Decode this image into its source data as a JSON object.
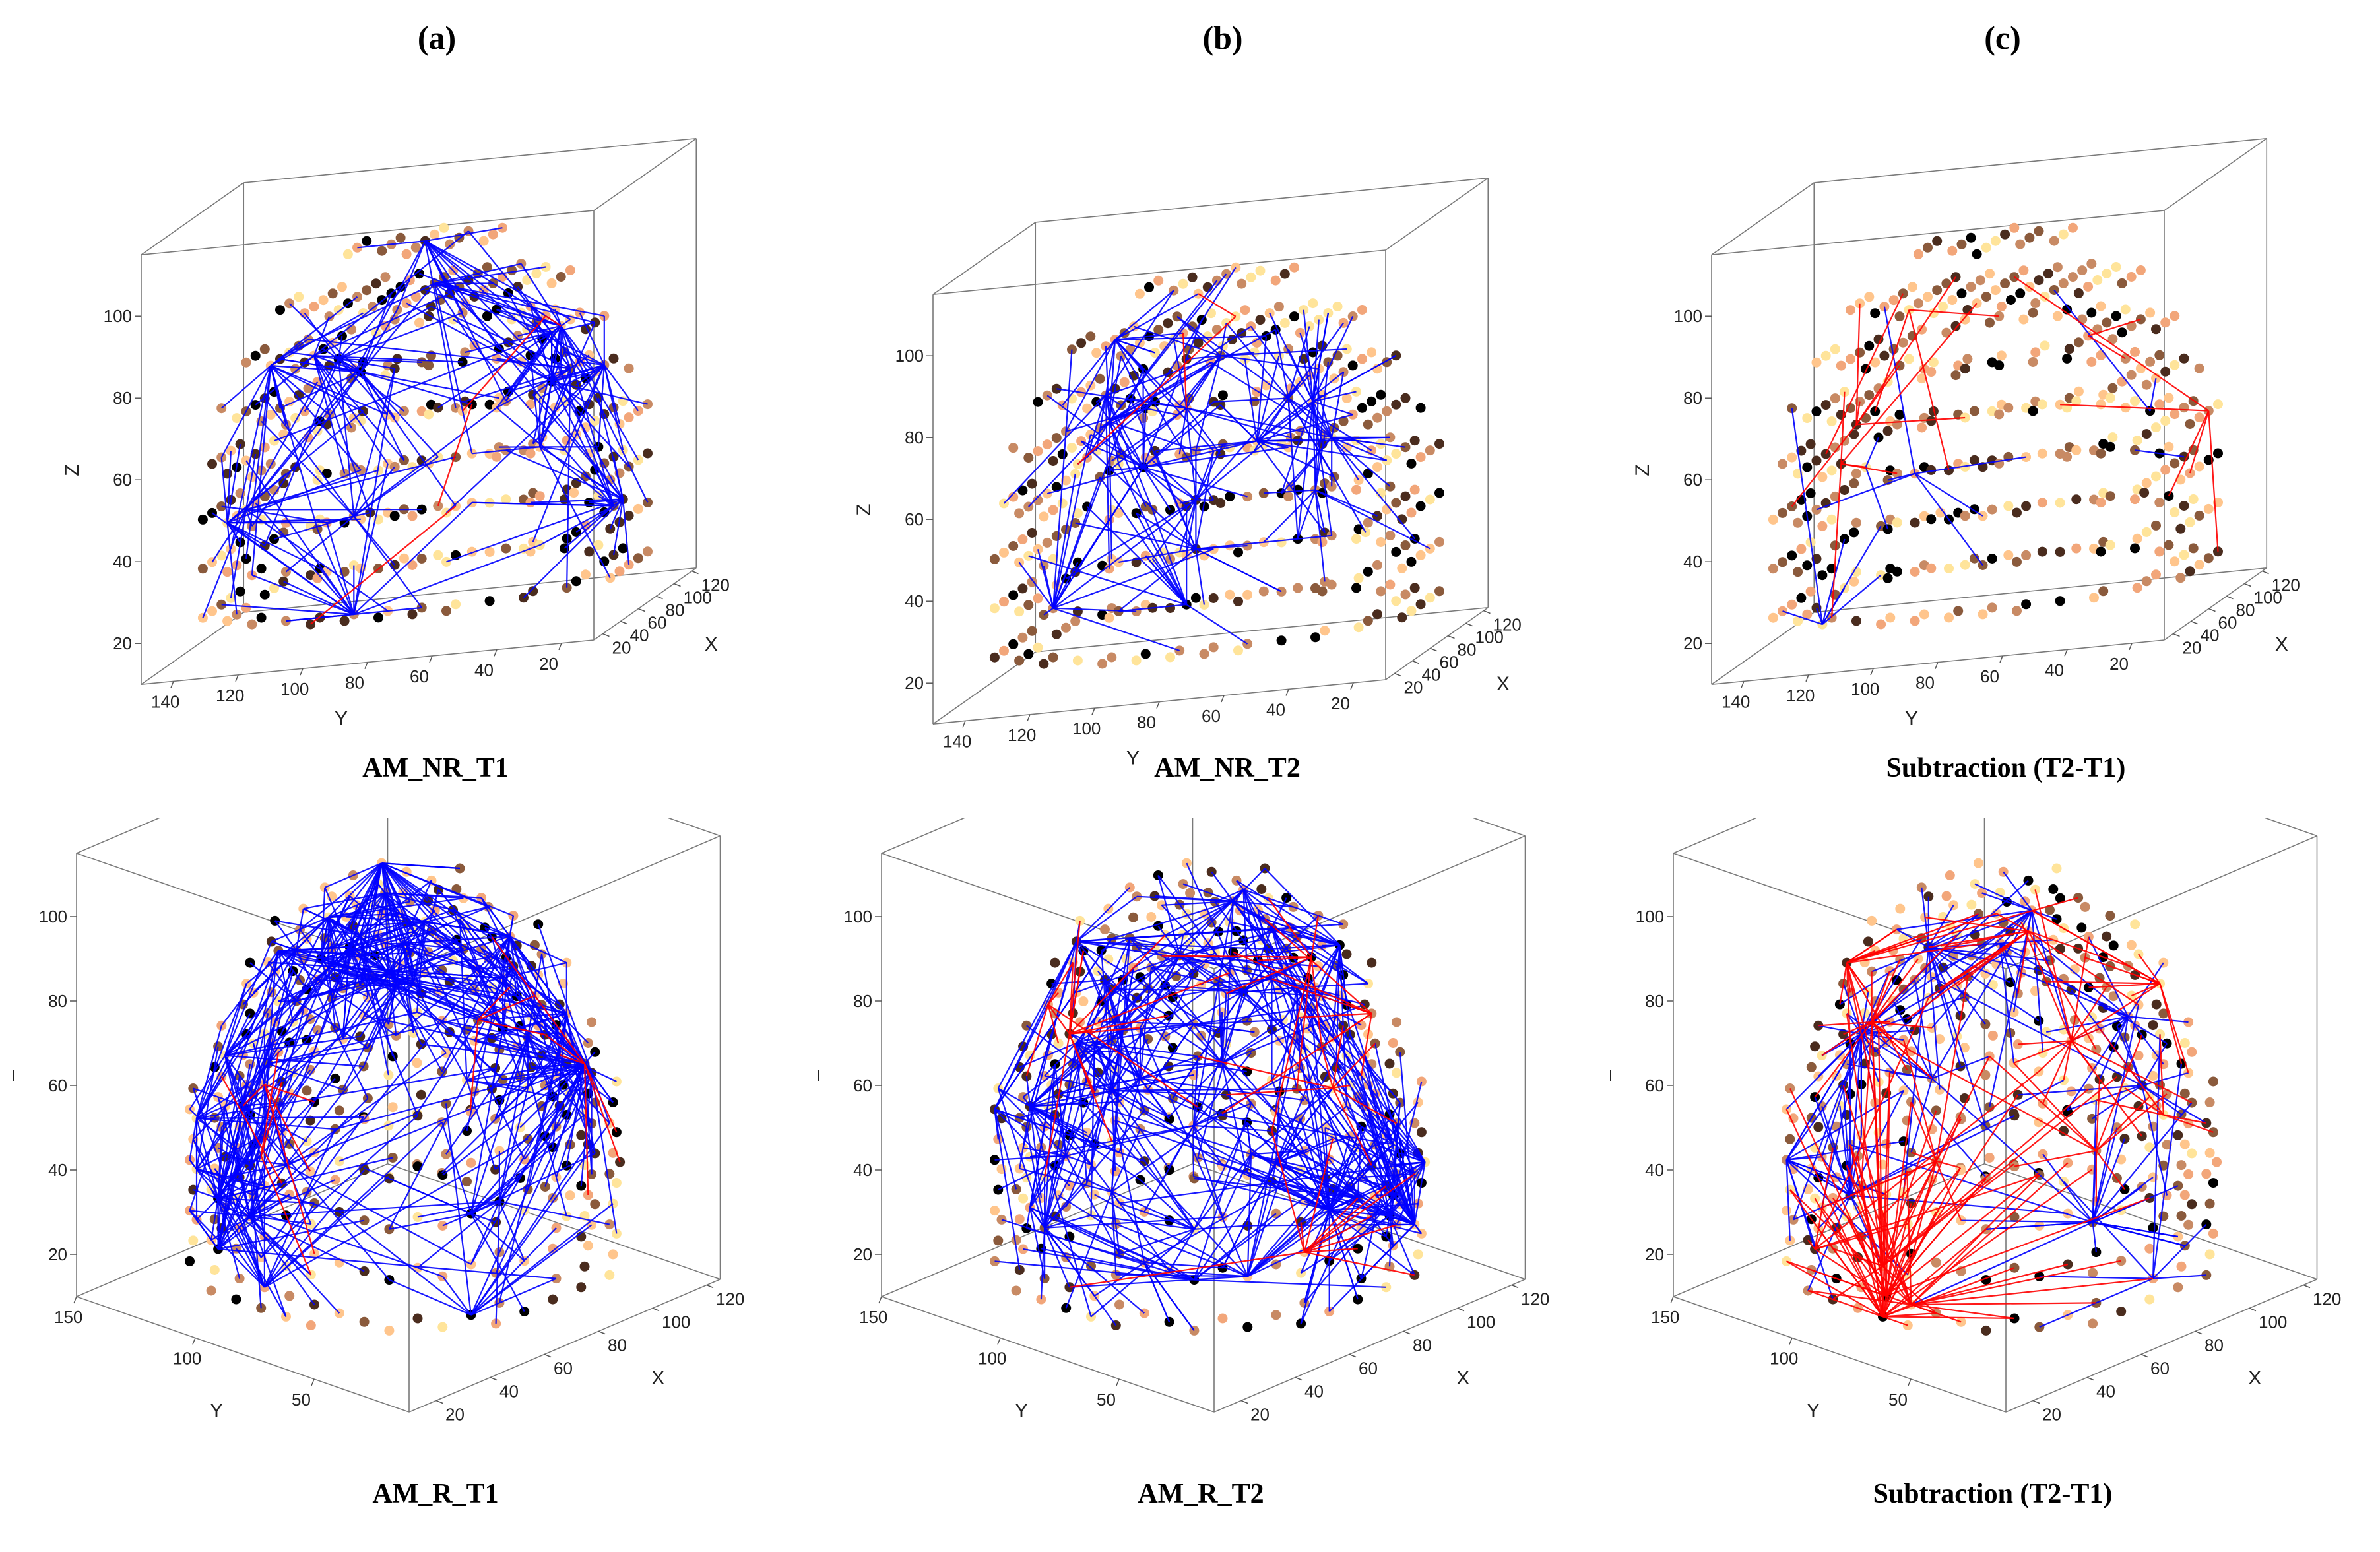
{
  "column_labels": [
    "(a)",
    "(b)",
    "(c)"
  ],
  "chart_data": [
    {
      "type": "scatter",
      "title": "AM_NR_T1",
      "xlabel": "X",
      "ylabel": "Y",
      "zlabel": "Z",
      "xticks": [
        20,
        40,
        60,
        80,
        100,
        120
      ],
      "yticks": [
        140,
        120,
        100,
        80,
        60,
        40,
        20
      ],
      "zticks": [
        20,
        40,
        60,
        80,
        100
      ],
      "xlim": [
        10,
        125
      ],
      "ylim": [
        10,
        150
      ],
      "zlim": [
        10,
        115
      ],
      "view": "A",
      "edge_density": {
        "blue": 260,
        "red": 4
      },
      "edge_colors": {
        "positive": "#0000ff",
        "negative": "#ff0000"
      },
      "node_colormap": [
        "#000000",
        "#4a2c1e",
        "#8a5a3c",
        "#c88a64",
        "#f2a67a",
        "#ffc58c",
        "#ffe49a"
      ]
    },
    {
      "type": "scatter",
      "title": "AM_NR_T2",
      "xlabel": "X",
      "ylabel": "Y",
      "zlabel": "Z",
      "xticks": [
        20,
        40,
        60,
        80,
        100,
        120
      ],
      "yticks": [
        140,
        120,
        100,
        80,
        60,
        40,
        20
      ],
      "zticks": [
        20,
        40,
        60,
        80,
        100
      ],
      "xlim": [
        10,
        125
      ],
      "ylim": [
        10,
        150
      ],
      "zlim": [
        10,
        115
      ],
      "view": "A",
      "edge_density": {
        "blue": 230,
        "red": 3
      },
      "edge_colors": {
        "positive": "#0000ff",
        "negative": "#ff0000"
      },
      "node_colormap": [
        "#000000",
        "#4a2c1e",
        "#8a5a3c",
        "#c88a64",
        "#f2a67a",
        "#ffc58c",
        "#ffe49a"
      ]
    },
    {
      "type": "scatter",
      "title": "Subtraction (T2-T1)",
      "xlabel": "X",
      "ylabel": "Y",
      "zlabel": "Z",
      "xticks": [
        20,
        40,
        60,
        80,
        100,
        120
      ],
      "yticks": [
        140,
        120,
        100,
        80,
        60,
        40,
        20
      ],
      "zticks": [
        20,
        40,
        60,
        80,
        100
      ],
      "xlim": [
        10,
        125
      ],
      "ylim": [
        10,
        150
      ],
      "zlim": [
        10,
        115
      ],
      "view": "A",
      "edge_density": {
        "blue": 18,
        "red": 22
      },
      "edge_colors": {
        "positive": "#0000ff",
        "negative": "#ff0000"
      },
      "node_colormap": [
        "#000000",
        "#4a2c1e",
        "#8a5a3c",
        "#c88a64",
        "#f2a67a",
        "#ffc58c",
        "#ffe49a"
      ]
    },
    {
      "type": "scatter",
      "title": "AM_R_T1",
      "xlabel": "X",
      "ylabel": "Y",
      "zlabel": "Z",
      "xticks": [
        20,
        40,
        60,
        80,
        100,
        120
      ],
      "yticks": [
        50,
        100,
        150
      ],
      "zticks": [
        20,
        40,
        60,
        80,
        100
      ],
      "xlim": [
        10,
        125
      ],
      "ylim": [
        10,
        150
      ],
      "zlim": [
        10,
        115
      ],
      "view": "B",
      "edge_density": {
        "blue": 620,
        "red": 18
      },
      "edge_colors": {
        "positive": "#0000ff",
        "negative": "#ff0000"
      },
      "node_colormap": [
        "#000000",
        "#4a2c1e",
        "#8a5a3c",
        "#c88a64",
        "#f2a67a",
        "#ffc58c",
        "#ffe49a"
      ]
    },
    {
      "type": "scatter",
      "title": "AM_R_T2",
      "xlabel": "X",
      "ylabel": "Y",
      "zlabel": "Z",
      "xticks": [
        20,
        40,
        60,
        80,
        100,
        120
      ],
      "yticks": [
        50,
        100,
        150
      ],
      "zticks": [
        20,
        40,
        60,
        80,
        100
      ],
      "xlim": [
        10,
        125
      ],
      "ylim": [
        10,
        150
      ],
      "zlim": [
        10,
        115
      ],
      "view": "B",
      "edge_density": {
        "blue": 600,
        "red": 55
      },
      "edge_colors": {
        "positive": "#0000ff",
        "negative": "#ff0000"
      },
      "node_colormap": [
        "#000000",
        "#4a2c1e",
        "#8a5a3c",
        "#c88a64",
        "#f2a67a",
        "#ffc58c",
        "#ffe49a"
      ]
    },
    {
      "type": "scatter",
      "title": "Subtraction (T2-T1)",
      "xlabel": "X",
      "ylabel": "Y",
      "zlabel": "Z",
      "xticks": [
        20,
        40,
        60,
        80,
        100,
        120
      ],
      "yticks": [
        50,
        100,
        150
      ],
      "zticks": [
        20,
        40,
        60,
        80,
        100
      ],
      "xlim": [
        10,
        125
      ],
      "ylim": [
        10,
        150
      ],
      "zlim": [
        10,
        115
      ],
      "view": "B",
      "edge_density": {
        "blue": 170,
        "red": 190
      },
      "edge_colors": {
        "positive": "#0000ff",
        "negative": "#ff0000"
      },
      "node_colormap": [
        "#000000",
        "#4a2c1e",
        "#8a5a3c",
        "#c88a64",
        "#f2a67a",
        "#ffc58c",
        "#ffe49a"
      ]
    }
  ]
}
